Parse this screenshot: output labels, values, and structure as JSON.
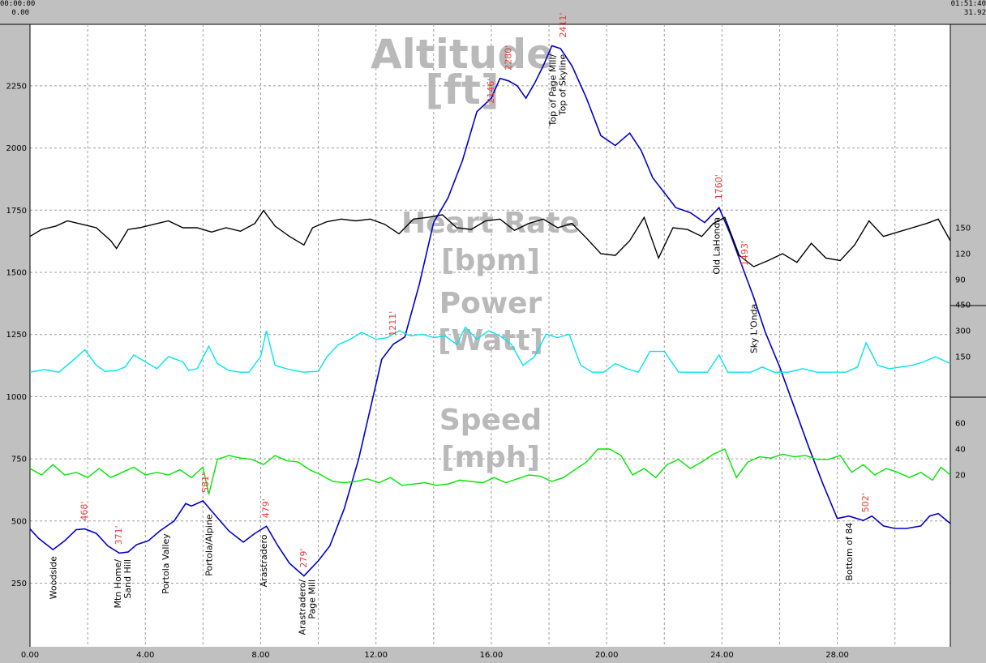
{
  "header": {
    "left_time": "00:00:00",
    "left_dist": "0.00",
    "right_time": "01:51:40",
    "right_dist": "31.92"
  },
  "colors": {
    "background": "#c0c0c0",
    "plot": "#ffffff",
    "altitude": "#0000c8",
    "heart_rate": "#000000",
    "power": "#00e5ee",
    "speed": "#00e600",
    "altitude_labels": "#e83a3a",
    "titles": "#b9b9b9"
  },
  "chart_data": {
    "type": "line",
    "x_ticks": [
      "0.00",
      "4.00",
      "8.00",
      "12.00",
      "16.00",
      "20.00",
      "24.00",
      "28.00"
    ],
    "xlim": [
      0,
      31.92
    ],
    "grid": true,
    "panels": [
      {
        "name": "altitude",
        "title": [
          "Altitude",
          "[ft]"
        ],
        "ylim": [
          0,
          2450
        ],
        "y_ticks": [
          "250",
          "500",
          "750",
          "1000",
          "1250",
          "1500",
          "1750",
          "2000",
          "2250"
        ],
        "series": {
          "x": [
            0,
            0.3,
            0.8,
            1.2,
            1.6,
            1.9,
            2.3,
            2.7,
            3.1,
            3.4,
            3.7,
            4.1,
            4.5,
            5.0,
            5.4,
            5.6,
            6.0,
            6.3,
            6.9,
            7.4,
            7.8,
            8.2,
            8.6,
            9.0,
            9.5,
            10.0,
            10.4,
            10.9,
            11.4,
            11.8,
            12.2,
            12.6,
            13.0,
            13.5,
            14.0,
            14.5,
            15.0,
            15.5,
            16.0,
            16.3,
            16.6,
            16.9,
            17.2,
            17.5,
            17.8,
            18.1,
            18.4,
            18.8,
            19.3,
            19.8,
            20.3,
            20.8,
            21.2,
            21.6,
            22.0,
            22.4,
            22.9,
            23.4,
            23.9,
            24.3,
            24.8,
            25.1,
            25.5,
            26.0,
            26.5,
            27.0,
            27.5,
            28.0,
            28.4,
            28.9,
            29.2,
            29.6,
            30.0,
            30.4,
            30.9,
            31.2,
            31.5,
            31.92
          ],
          "y": [
            468,
            430,
            385,
            420,
            465,
            468,
            450,
            400,
            371,
            375,
            405,
            420,
            460,
            500,
            570,
            560,
            581,
            540,
            460,
            415,
            450,
            479,
            400,
            330,
            279,
            340,
            400,
            550,
            750,
            950,
            1150,
            1211,
            1240,
            1450,
            1700,
            1800,
            1950,
            2146,
            2200,
            2280,
            2270,
            2250,
            2200,
            2260,
            2330,
            2411,
            2400,
            2330,
            2200,
            2050,
            2010,
            2060,
            1990,
            1880,
            1820,
            1760,
            1740,
            1700,
            1760,
            1650,
            1493,
            1400,
            1260,
            1120,
            960,
            800,
            650,
            510,
            520,
            502,
            520,
            480,
            470,
            470,
            480,
            520,
            530,
            490
          ]
        }
      },
      {
        "name": "heart_rate",
        "title": [
          "Heart Rate",
          "[bpm]"
        ],
        "y_ticks": [
          "90",
          "120",
          "150"
        ],
        "ylim": [
          40,
          190
        ],
        "series": {
          "x": [
            0,
            0.4,
            0.9,
            1.3,
            1.8,
            2.3,
            2.8,
            3.0,
            3.4,
            3.8,
            4.3,
            4.8,
            5.3,
            5.8,
            6.3,
            6.8,
            7.3,
            7.8,
            8.1,
            8.5,
            9.0,
            9.5,
            9.8,
            10.3,
            10.8,
            11.3,
            11.8,
            12.3,
            12.8,
            13.3,
            13.8,
            14.3,
            14.8,
            15.3,
            15.8,
            16.3,
            16.8,
            17.3,
            17.8,
            18.3,
            18.8,
            19.3,
            19.8,
            20.3,
            20.8,
            21.3,
            21.8,
            22.3,
            22.8,
            23.3,
            23.7,
            24.1,
            24.6,
            25.1,
            25.6,
            26.1,
            26.6,
            27.1,
            27.6,
            28.1,
            28.6,
            29.1,
            29.6,
            30.1,
            30.6,
            31.1,
            31.5,
            31.92
          ],
          "y": [
            140,
            148,
            152,
            158,
            154,
            150,
            135,
            126,
            148,
            150,
            154,
            158,
            150,
            150,
            145,
            150,
            146,
            155,
            170,
            152,
            140,
            130,
            150,
            157,
            160,
            158,
            160,
            154,
            143,
            160,
            162,
            165,
            150,
            148,
            158,
            160,
            147,
            155,
            160,
            150,
            155,
            138,
            120,
            118,
            135,
            162,
            115,
            150,
            148,
            140,
            155,
            162,
            118,
            105,
            112,
            120,
            110,
            132,
            115,
            112,
            130,
            158,
            140,
            145,
            150,
            155,
            160,
            135
          ]
        }
      },
      {
        "name": "power",
        "title": [
          "Power",
          "[Watt]"
        ],
        "y_ticks": [
          "150",
          "300",
          "450"
        ],
        "ylim": [
          0,
          460
        ],
        "series": {
          "x": [
            0,
            0.5,
            1.0,
            1.5,
            1.9,
            2.3,
            2.6,
            3.0,
            3.3,
            3.6,
            4.0,
            4.4,
            4.8,
            5.3,
            5.5,
            5.8,
            6.2,
            6.5,
            6.9,
            7.3,
            7.6,
            8.0,
            8.2,
            8.5,
            9.0,
            9.5,
            10.0,
            10.3,
            10.7,
            11.1,
            11.5,
            12.0,
            12.4,
            12.8,
            13.2,
            13.6,
            14.0,
            14.4,
            14.8,
            15.1,
            15.5,
            15.9,
            16.3,
            16.7,
            17.1,
            17.5,
            17.9,
            18.3,
            18.7,
            19.1,
            19.5,
            19.9,
            20.3,
            20.7,
            21.1,
            21.5,
            22.0,
            22.5,
            23.0,
            23.5,
            23.9,
            24.2,
            24.6,
            25.0,
            25.4,
            25.8,
            26.3,
            26.8,
            27.3,
            27.8,
            28.3,
            28.7,
            29.0,
            29.4,
            29.8,
            30.2,
            30.6,
            31.0,
            31.4,
            31.92
          ],
          "y": [
            60,
            75,
            60,
            130,
            190,
            100,
            65,
            70,
            90,
            160,
            120,
            80,
            150,
            120,
            70,
            80,
            210,
            110,
            70,
            60,
            60,
            150,
            300,
            100,
            75,
            60,
            65,
            150,
            220,
            250,
            290,
            250,
            260,
            300,
            270,
            280,
            260,
            270,
            220,
            320,
            250,
            300,
            270,
            220,
            100,
            150,
            280,
            260,
            280,
            100,
            60,
            60,
            110,
            80,
            60,
            180,
            180,
            60,
            60,
            60,
            160,
            60,
            60,
            60,
            90,
            60,
            60,
            80,
            60,
            60,
            60,
            90,
            230,
            100,
            80,
            90,
            100,
            120,
            150,
            110
          ]
        }
      },
      {
        "name": "speed",
        "title": [
          "Speed",
          "[mph]"
        ],
        "y_ticks": [
          "20",
          "40",
          "60"
        ],
        "ylim": [
          0,
          80
        ],
        "series": {
          "x": [
            0,
            0.4,
            0.8,
            1.2,
            1.6,
            2.0,
            2.4,
            2.8,
            3.2,
            3.6,
            4.0,
            4.4,
            4.8,
            5.2,
            5.6,
            6.0,
            6.2,
            6.5,
            6.9,
            7.3,
            7.7,
            8.1,
            8.5,
            8.9,
            9.3,
            9.7,
            10.1,
            10.5,
            10.9,
            11.3,
            11.7,
            12.1,
            12.5,
            12.9,
            13.3,
            13.7,
            14.1,
            14.5,
            14.9,
            15.3,
            15.7,
            16.1,
            16.5,
            16.9,
            17.3,
            17.7,
            18.1,
            18.5,
            18.9,
            19.3,
            19.7,
            20.1,
            20.5,
            20.9,
            21.3,
            21.7,
            22.1,
            22.5,
            22.9,
            23.3,
            23.7,
            24.1,
            24.5,
            24.9,
            25.3,
            25.7,
            26.1,
            26.5,
            26.9,
            27.3,
            27.7,
            28.1,
            28.5,
            28.9,
            29.3,
            29.7,
            30.1,
            30.5,
            30.9,
            31.3,
            31.6,
            31.92
          ],
          "y": [
            25,
            20,
            28,
            20,
            22,
            18,
            25,
            18,
            22,
            26,
            20,
            22,
            20,
            24,
            18,
            26,
            5,
            32,
            35,
            33,
            32,
            28,
            35,
            31,
            30,
            24,
            20,
            15,
            14,
            15,
            17,
            14,
            18,
            12,
            13,
            14,
            12,
            13,
            16,
            15,
            14,
            18,
            14,
            17,
            20,
            19,
            15,
            18,
            24,
            30,
            40,
            40,
            35,
            20,
            25,
            18,
            28,
            32,
            25,
            30,
            36,
            40,
            18,
            30,
            34,
            33,
            36,
            34,
            35,
            32,
            32,
            35,
            22,
            28,
            20,
            25,
            22,
            18,
            22,
            16,
            26,
            20
          ]
        }
      }
    ],
    "altitude_labels": [
      {
        "x": 1.9,
        "y": 468,
        "text": "468'"
      },
      {
        "x": 3.1,
        "y": 371,
        "text": "371'"
      },
      {
        "x": 6.1,
        "y": 581,
        "text": "581'"
      },
      {
        "x": 8.2,
        "y": 479,
        "text": "479'"
      },
      {
        "x": 9.5,
        "y": 279,
        "text": "279'"
      },
      {
        "x": 12.6,
        "y": 1211,
        "text": "1211'"
      },
      {
        "x": 16.0,
        "y": 2146,
        "text": "2146'"
      },
      {
        "x": 16.6,
        "y": 2280,
        "text": "2280'"
      },
      {
        "x": 18.5,
        "y": 2411,
        "text": "2411'"
      },
      {
        "x": 23.9,
        "y": 1760,
        "text": "1760'"
      },
      {
        "x": 24.8,
        "y": 1493,
        "text": "1493'"
      },
      {
        "x": 29.0,
        "y": 502,
        "text": "502'"
      }
    ],
    "place_labels": [
      {
        "x": 0.8,
        "lines": [
          "Woodside"
        ]
      },
      {
        "x": 3.2,
        "lines": [
          "Mtn Home/",
          "Sand Hill"
        ]
      },
      {
        "x": 4.7,
        "lines": [
          "Portola Valley"
        ]
      },
      {
        "x": 6.2,
        "lines": [
          "Portola/Alpine"
        ]
      },
      {
        "x": 8.1,
        "lines": [
          "Arastradero"
        ]
      },
      {
        "x": 9.6,
        "lines": [
          "Arastradero/",
          "Page Mill"
        ]
      },
      {
        "x": 18.3,
        "lines": [
          "Top of Page Mill/",
          "Top of Skyline"
        ]
      },
      {
        "x": 23.8,
        "lines": [
          "Old LaHonda"
        ]
      },
      {
        "x": 25.1,
        "lines": [
          "Sky L'Onda"
        ]
      },
      {
        "x": 28.4,
        "lines": [
          "Bottom of 84"
        ]
      }
    ]
  }
}
